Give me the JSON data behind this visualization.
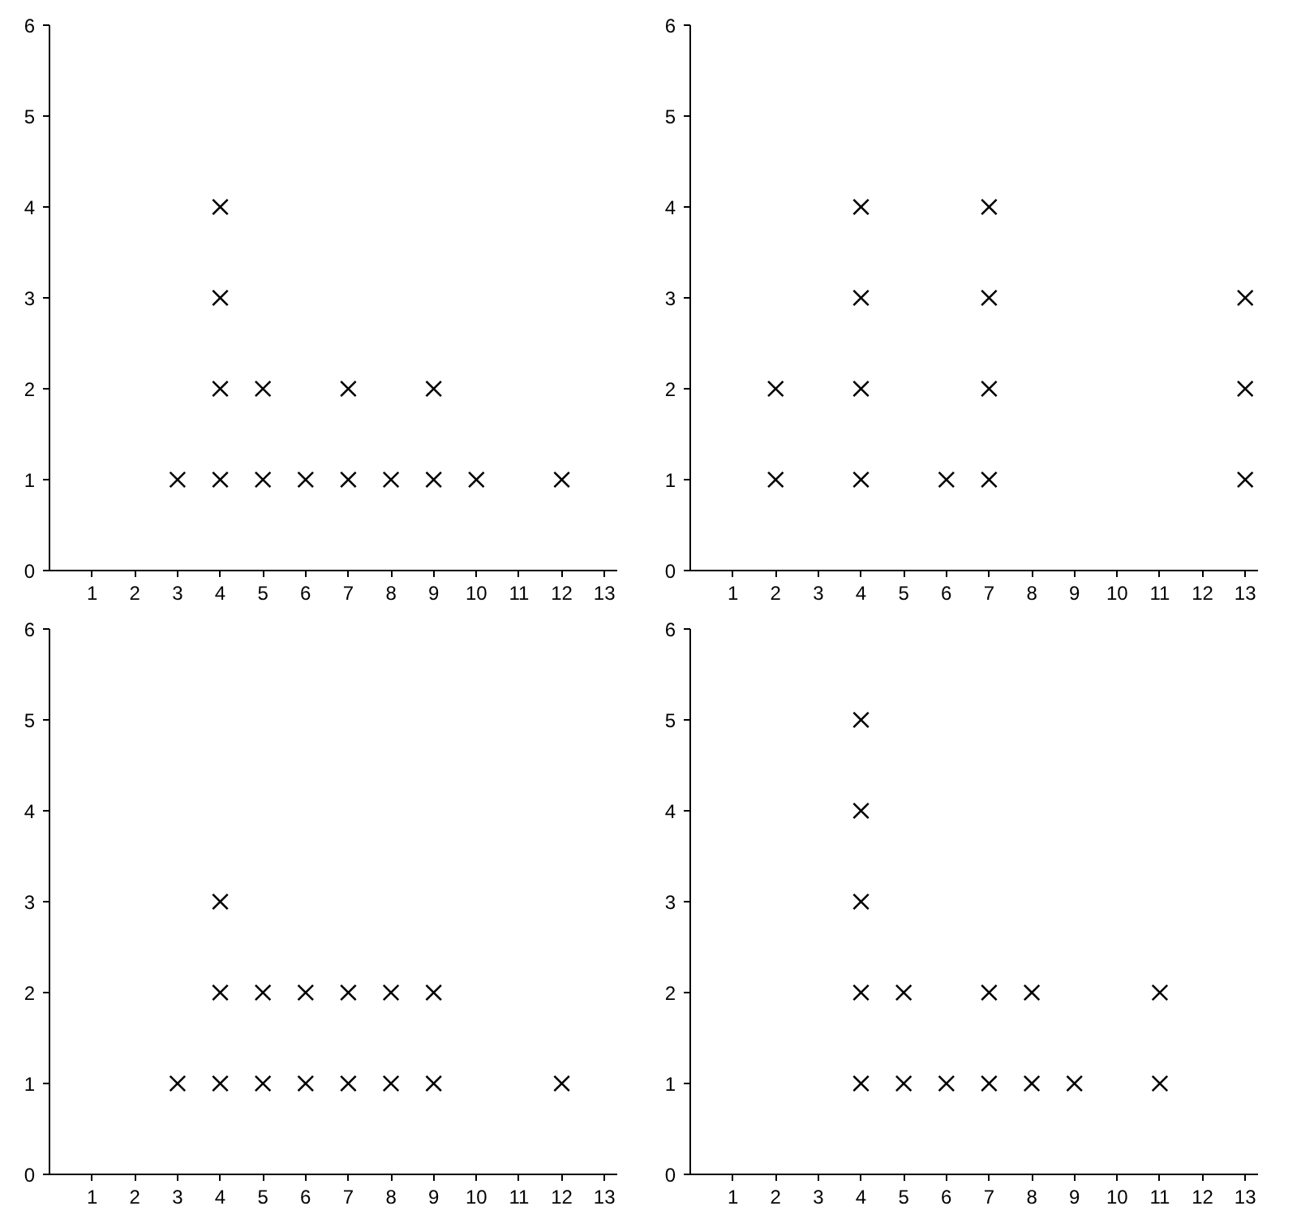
{
  "chart_data": [
    {
      "type": "scatter",
      "marker": "cross",
      "grid": false,
      "xlim": [
        0,
        13.3
      ],
      "ylim": [
        0,
        6
      ],
      "xticks": [
        1,
        2,
        3,
        4,
        5,
        6,
        7,
        8,
        9,
        10,
        11,
        12,
        13
      ],
      "yticks": [
        0,
        1,
        2,
        3,
        4,
        5,
        6
      ],
      "series": [
        {
          "color": "#000000",
          "x": [
            3,
            4,
            4,
            4,
            4,
            5,
            5,
            6,
            7,
            7,
            8,
            9,
            9,
            10,
            12
          ],
          "values": [
            1,
            1,
            2,
            3,
            4,
            1,
            2,
            1,
            1,
            2,
            1,
            1,
            2,
            1,
            1
          ]
        }
      ]
    },
    {
      "type": "scatter",
      "marker": "cross",
      "grid": false,
      "xlim": [
        0,
        13.3
      ],
      "ylim": [
        0,
        6
      ],
      "xticks": [
        1,
        2,
        3,
        4,
        5,
        6,
        7,
        8,
        9,
        10,
        11,
        12,
        13
      ],
      "yticks": [
        0,
        1,
        2,
        3,
        4,
        5,
        6
      ],
      "series": [
        {
          "color": "#000000",
          "x": [
            2,
            2,
            4,
            4,
            4,
            4,
            6,
            7,
            7,
            7,
            7,
            13,
            13,
            13
          ],
          "values": [
            1,
            2,
            1,
            2,
            3,
            4,
            1,
            1,
            2,
            3,
            4,
            1,
            2,
            3
          ]
        }
      ]
    },
    {
      "type": "scatter",
      "marker": "cross",
      "grid": false,
      "xlim": [
        0,
        13.3
      ],
      "ylim": [
        0,
        6
      ],
      "xticks": [
        1,
        2,
        3,
        4,
        5,
        6,
        7,
        8,
        9,
        10,
        11,
        12,
        13
      ],
      "yticks": [
        0,
        1,
        2,
        3,
        4,
        5,
        6
      ],
      "series": [
        {
          "color": "#000000",
          "x": [
            3,
            4,
            4,
            4,
            5,
            5,
            6,
            6,
            7,
            7,
            8,
            8,
            9,
            9,
            12
          ],
          "values": [
            1,
            1,
            2,
            3,
            1,
            2,
            1,
            2,
            1,
            2,
            1,
            2,
            1,
            2,
            1
          ]
        }
      ]
    },
    {
      "type": "scatter",
      "marker": "cross",
      "grid": false,
      "xlim": [
        0,
        13.3
      ],
      "ylim": [
        0,
        6
      ],
      "xticks": [
        1,
        2,
        3,
        4,
        5,
        6,
        7,
        8,
        9,
        10,
        11,
        12,
        13
      ],
      "yticks": [
        0,
        1,
        2,
        3,
        4,
        5,
        6
      ],
      "series": [
        {
          "color": "#000000",
          "x": [
            4,
            4,
            4,
            4,
            4,
            5,
            5,
            6,
            7,
            7,
            8,
            8,
            9,
            11,
            11
          ],
          "values": [
            1,
            2,
            3,
            4,
            5,
            1,
            2,
            1,
            1,
            2,
            1,
            2,
            1,
            1,
            2
          ]
        }
      ]
    }
  ]
}
